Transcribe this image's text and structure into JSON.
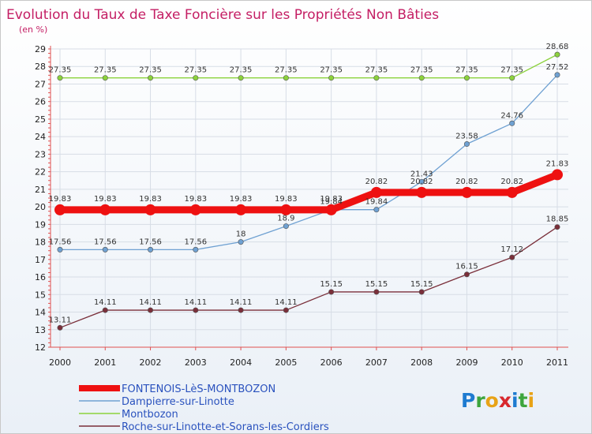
{
  "chart_data": {
    "type": "line",
    "title": "Evolution du Taux de Taxe Foncière sur les Propriétés Non Bâties",
    "subtitle": "(en %)",
    "x": [
      "2000",
      "2001",
      "2002",
      "2003",
      "2004",
      "2005",
      "2006",
      "2007",
      "2008",
      "2009",
      "2010",
      "2011"
    ],
    "ylim": [
      12,
      29
    ],
    "yticks": [
      "12",
      "13",
      "14",
      "15",
      "16",
      "17",
      "18",
      "19",
      "20",
      "21",
      "22",
      "23",
      "24",
      "25",
      "26",
      "27",
      "28",
      "29"
    ],
    "grid": true,
    "legend_position": "bottom-left",
    "series": [
      {
        "name": "Montbozon",
        "color": "#8cd23c",
        "values": [
          27.35,
          27.35,
          27.35,
          27.35,
          27.35,
          27.35,
          27.35,
          27.35,
          27.35,
          27.35,
          27.35,
          28.68
        ],
        "labels": [
          "27.35",
          "27.35",
          "27.35",
          "27.35",
          "27.35",
          "27.35",
          "27.35",
          "27.35",
          "27.35",
          "27.35",
          "27.35",
          "28.68"
        ]
      },
      {
        "name": "Dampierre-sur-Linotte",
        "color": "#6fa1d2",
        "values": [
          17.56,
          17.56,
          17.56,
          17.56,
          18,
          18.9,
          19.84,
          19.84,
          21.43,
          23.58,
          24.76,
          27.52
        ],
        "labels": [
          "17.56",
          "17.56",
          "17.56",
          "17.56",
          "18",
          "18.9",
          "19.84",
          "19.84",
          "21.43",
          "23.58",
          "24.76",
          "27.52"
        ]
      },
      {
        "name": "Roche-sur-Linotte-et-Sorans-les-Cordiers",
        "color": "#7a2f3a",
        "values": [
          13.11,
          14.11,
          14.11,
          14.11,
          14.11,
          14.11,
          15.15,
          15.15,
          15.15,
          16.15,
          17.12,
          18.85
        ],
        "labels": [
          "13.11",
          "14.11",
          "14.11",
          "14.11",
          "14.11",
          "14.11",
          "15.15",
          "15.15",
          "15.15",
          "16.15",
          "17.12",
          "18.85"
        ]
      },
      {
        "name": "FONTENOIS-LèS-MONTBOZON",
        "color": "#ee1111",
        "values": [
          19.83,
          19.83,
          19.83,
          19.83,
          19.83,
          19.83,
          19.83,
          20.82,
          20.82,
          20.82,
          20.82,
          21.83
        ],
        "labels": [
          "19.83",
          "19.83",
          "19.83",
          "19.83",
          "19.83",
          "19.83",
          "19.83",
          "20.82",
          "20.82",
          "20.82",
          "20.82",
          "21.83"
        ]
      }
    ],
    "legend": [
      {
        "name": "FONTENOIS-LèS-MONTBOZON",
        "color": "#ee1111"
      },
      {
        "name": "Dampierre-sur-Linotte",
        "color": "#6fa1d2"
      },
      {
        "name": "Montbozon",
        "color": "#8cd23c"
      },
      {
        "name": "Roche-sur-Linotte-et-Sorans-les-Cordiers",
        "color": "#7a2f3a"
      }
    ]
  },
  "logo": {
    "text": "Proxiti"
  }
}
